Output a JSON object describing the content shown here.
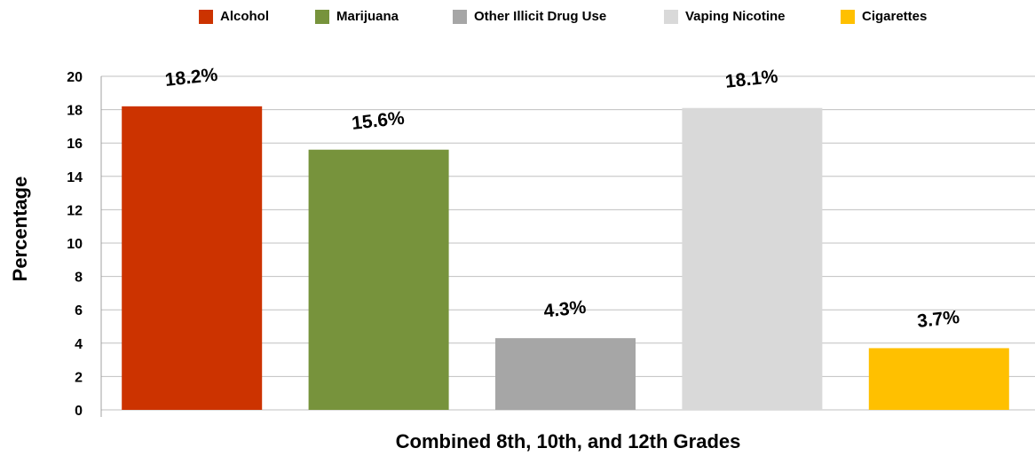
{
  "chart_data": {
    "type": "bar",
    "xlabel": "Combined 8th, 10th, and 12th Grades",
    "ylabel": "Percentage",
    "ylim": [
      0,
      20
    ],
    "yticks": [
      0,
      2,
      4,
      6,
      8,
      10,
      12,
      14,
      16,
      18,
      20
    ],
    "grid": true,
    "legend_position": "top",
    "categories": [
      "Alcohol",
      "Marijuana",
      "Other Illicit Drug Use",
      "Vaping Nicotine",
      "Cigarettes"
    ],
    "series": [
      {
        "name": "Alcohol",
        "value": 18.2,
        "label": "18.2%",
        "color": "#cc3300"
      },
      {
        "name": "Marijuana",
        "value": 15.6,
        "label": "15.6%",
        "color": "#77933c"
      },
      {
        "name": "Other Illicit Drug Use",
        "value": 4.3,
        "label": "4.3%",
        "color": "#a6a6a6"
      },
      {
        "name": "Vaping Nicotine",
        "value": 18.1,
        "label": "18.1%",
        "color": "#d9d9d9"
      },
      {
        "name": "Cigarettes",
        "value": 3.7,
        "label": "3.7%",
        "color": "#ffc000"
      }
    ],
    "colors": {
      "grid": "#c0c0c0",
      "axis": "#a0a0a0"
    }
  }
}
